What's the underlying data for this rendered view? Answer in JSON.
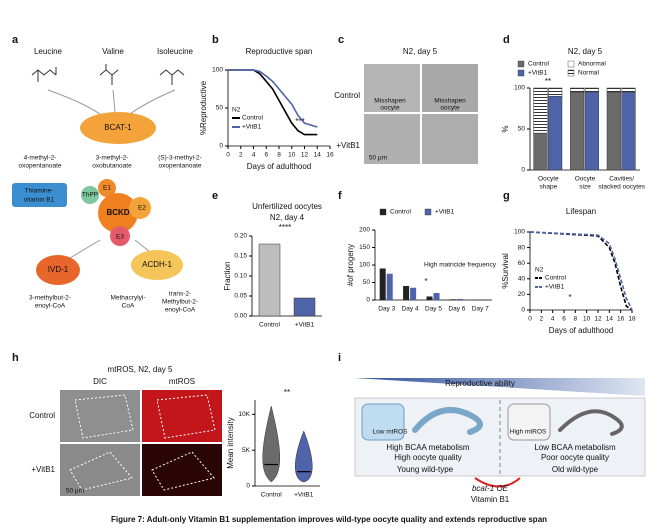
{
  "caption": "Figure 7: Adult-only Vitamin B1 supplementation improves wild-type oocyte quality and extends reproductive span",
  "panel_labels": [
    "a",
    "b",
    "c",
    "d",
    "e",
    "f",
    "g",
    "h",
    "i"
  ],
  "a": {
    "amino_acids": [
      "Leucine",
      "Valine",
      "Isoleucine"
    ],
    "enzyme": "BCAT-1",
    "keto_acids": [
      [
        "4-methyl-2-",
        "oxopentanoate"
      ],
      [
        "3-methyl-2-",
        "oxobutanoate"
      ],
      [
        "(S)-3-methyl-2-",
        "oxopentanoate"
      ]
    ],
    "cofactor": [
      "Thiamine-",
      "vitamin B1"
    ],
    "complex": "BCKD",
    "subunits": [
      "ThPP",
      "E1",
      "E2",
      "E3"
    ],
    "enzymes": [
      "IVD-1",
      "ACDH-1"
    ],
    "products": [
      [
        "3-methylbut-2-",
        "enoyl-CoA"
      ],
      [
        "Methacrylyl-",
        "CoA"
      ],
      [
        "trans-2-",
        "Methylbut-2-",
        "enoyl-CoA"
      ]
    ]
  },
  "c": {
    "title": "N2, day 5",
    "rows": [
      "Control",
      "+VitB1"
    ],
    "callouts": [
      [
        "Misshapen",
        "oocyte"
      ],
      [
        "Misshapen",
        "oocyte"
      ]
    ],
    "scale": "50 µm"
  },
  "h": {
    "title": "mtROS, N2, day 5",
    "columns": [
      "DIC",
      "mtROS"
    ],
    "rows": [
      "Control",
      "+VitB1"
    ],
    "scale": "50 µm"
  },
  "i": {
    "title": "Reproductive ability",
    "left_cell": "Low mtROS",
    "left_lines": [
      "High BCAA metabolism",
      "High oocyte quality"
    ],
    "left_label": "Young wild-type",
    "right_cell": "High mtROS",
    "right_lines": [
      "Low BCAA metabolism",
      "Poor oocyte quality"
    ],
    "right_label": "Old wild-type",
    "intervention": [
      "bcat-1 OE",
      "Vitamin B1"
    ]
  },
  "chart_data": [
    {
      "type": "line",
      "title": "Reproductive span",
      "ylabel": "%Reproductive",
      "xlabel": "Days of adulthood",
      "legend_title": "N2",
      "annotations": [
        "***"
      ],
      "x": [
        0,
        4,
        5,
        6,
        7,
        8,
        9,
        10,
        11,
        12,
        14
      ],
      "series": [
        {
          "name": "Control",
          "color": "#000000",
          "values": [
            100,
            100,
            95,
            85,
            75,
            60,
            45,
            30,
            20,
            15,
            15
          ]
        },
        {
          "name": "+VitB1",
          "color": "#4f64a8",
          "values": [
            100,
            100,
            98,
            92,
            85,
            75,
            65,
            55,
            40,
            30,
            25
          ]
        }
      ],
      "xlim": [
        0,
        16
      ],
      "xticks": [
        0,
        2,
        4,
        6,
        8,
        10,
        12,
        14,
        16
      ],
      "ylim": [
        0,
        100
      ],
      "yticks": [
        0,
        50,
        100
      ]
    },
    {
      "type": "bar",
      "stacked": true,
      "title": "N2, day 5",
      "ylabel": "%",
      "annotations": [
        "**"
      ],
      "categories": [
        [
          "Oocyte",
          "shape"
        ],
        [
          "Oocyte",
          "size"
        ],
        [
          "Cavities/",
          "stacked oocytes"
        ]
      ],
      "segments": [
        {
          "name": "Normal"
        },
        {
          "name": "Abnormal"
        }
      ],
      "series": [
        {
          "name": "Control",
          "color": "#6b6b6b",
          "values": [
            [
              45,
              55
            ],
            [
              95,
              5
            ],
            [
              95,
              5
            ]
          ]
        },
        {
          "name": "+VitB1",
          "color": "#4f64a8",
          "values": [
            [
              90,
              10
            ],
            [
              95,
              5
            ],
            [
              95,
              5
            ]
          ]
        }
      ],
      "ylim": [
        0,
        100
      ],
      "yticks": [
        0,
        50,
        100
      ]
    },
    {
      "type": "bar",
      "title": "Unfertilized oocytes",
      "subtitle": "N2, day 4",
      "ylabel": "Fraction",
      "annotations": [
        "****"
      ],
      "categories": [
        "Control",
        "+VitB1"
      ],
      "values": [
        0.18,
        0.045
      ],
      "colors": [
        "#bdbdbd",
        "#4f64a8"
      ],
      "ylim": [
        0,
        0.2
      ],
      "yticks": [
        {
          "value": 0,
          "label": "0.00"
        },
        {
          "value": 0.05,
          "label": "0.05"
        },
        {
          "value": 0.1,
          "label": "0.10"
        },
        {
          "value": 0.15,
          "label": "0.15"
        },
        {
          "value": 0.2,
          "label": "0.20"
        }
      ]
    },
    {
      "type": "bar",
      "ylabel": "#of progeny",
      "annotations": [
        "*",
        "High matricide frequency"
      ],
      "categories": [
        "Day 3",
        "Day 4",
        "Day 5",
        "Day 6",
        "Day 7"
      ],
      "series": [
        {
          "name": "Control",
          "color": "#222222",
          "values": [
            90,
            40,
            10,
            2,
            1
          ]
        },
        {
          "name": "+VitB1",
          "color": "#4f64a8",
          "values": [
            75,
            35,
            20,
            3,
            2
          ]
        }
      ],
      "ylim": [
        0,
        200
      ],
      "yticks": [
        0,
        50,
        100,
        150,
        200
      ]
    },
    {
      "type": "line",
      "dashed": true,
      "title": "Lifespan",
      "ylabel": "%Survival",
      "xlabel": "Days of adulthood",
      "legend_title": "N2",
      "annotations": [
        "*"
      ],
      "x": [
        0,
        12,
        14,
        15,
        16,
        17,
        18
      ],
      "series": [
        {
          "name": "Control",
          "color": "#000000",
          "values": [
            100,
            95,
            80,
            60,
            30,
            5,
            0
          ]
        },
        {
          "name": "+VitB1",
          "color": "#4f64a8",
          "values": [
            100,
            96,
            85,
            65,
            40,
            15,
            0
          ]
        }
      ],
      "xlim": [
        0,
        18
      ],
      "xticks": [
        0,
        2,
        4,
        6,
        8,
        10,
        12,
        14,
        16,
        18
      ],
      "ylim": [
        0,
        100
      ],
      "yticks": [
        0,
        20,
        40,
        60,
        80,
        100
      ]
    },
    {
      "type": "violin",
      "ylabel": "Mean intensity",
      "annotations": [
        "**"
      ],
      "categories": [
        "Control",
        "+VitB1"
      ],
      "values": [
        3000,
        2000
      ],
      "colors": [
        "#6b6b6b",
        "#4f64a8"
      ],
      "ylim": [
        0,
        12000
      ],
      "yticks": [
        0,
        {
          "value": 5000,
          "label": "5K"
        },
        {
          "value": 10000,
          "label": "10K"
        }
      ]
    }
  ]
}
